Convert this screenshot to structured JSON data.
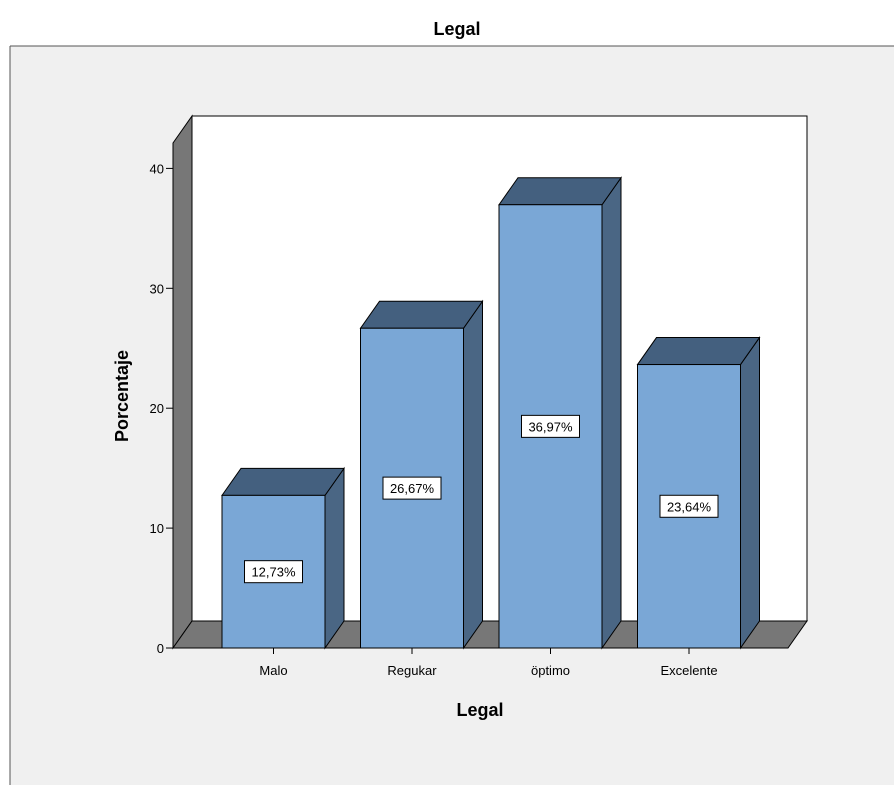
{
  "chart_data": {
    "type": "bar",
    "title": "Legal",
    "xlabel": "Legal",
    "ylabel": "Porcentaje",
    "categories": [
      "Malo",
      "Regukar",
      "öptimo",
      "Excelente"
    ],
    "values": [
      12.73,
      26.67,
      36.97,
      23.64
    ],
    "data_labels": [
      "12,73%",
      "26,67%",
      "36,97%",
      "23,64%"
    ],
    "ylim": [
      0,
      43
    ],
    "yticks": [
      0,
      10,
      20,
      30,
      40
    ],
    "grid": false,
    "legend": "none",
    "style": "3d",
    "colors": {
      "bar_front": "#7aa7d6",
      "bar_top": "#44607f",
      "bar_side": "#4a6684",
      "floor": "#777777",
      "back_wall": "#ffffff",
      "left_wall": "#777777",
      "outer_bg": "#f0f0f0"
    }
  }
}
